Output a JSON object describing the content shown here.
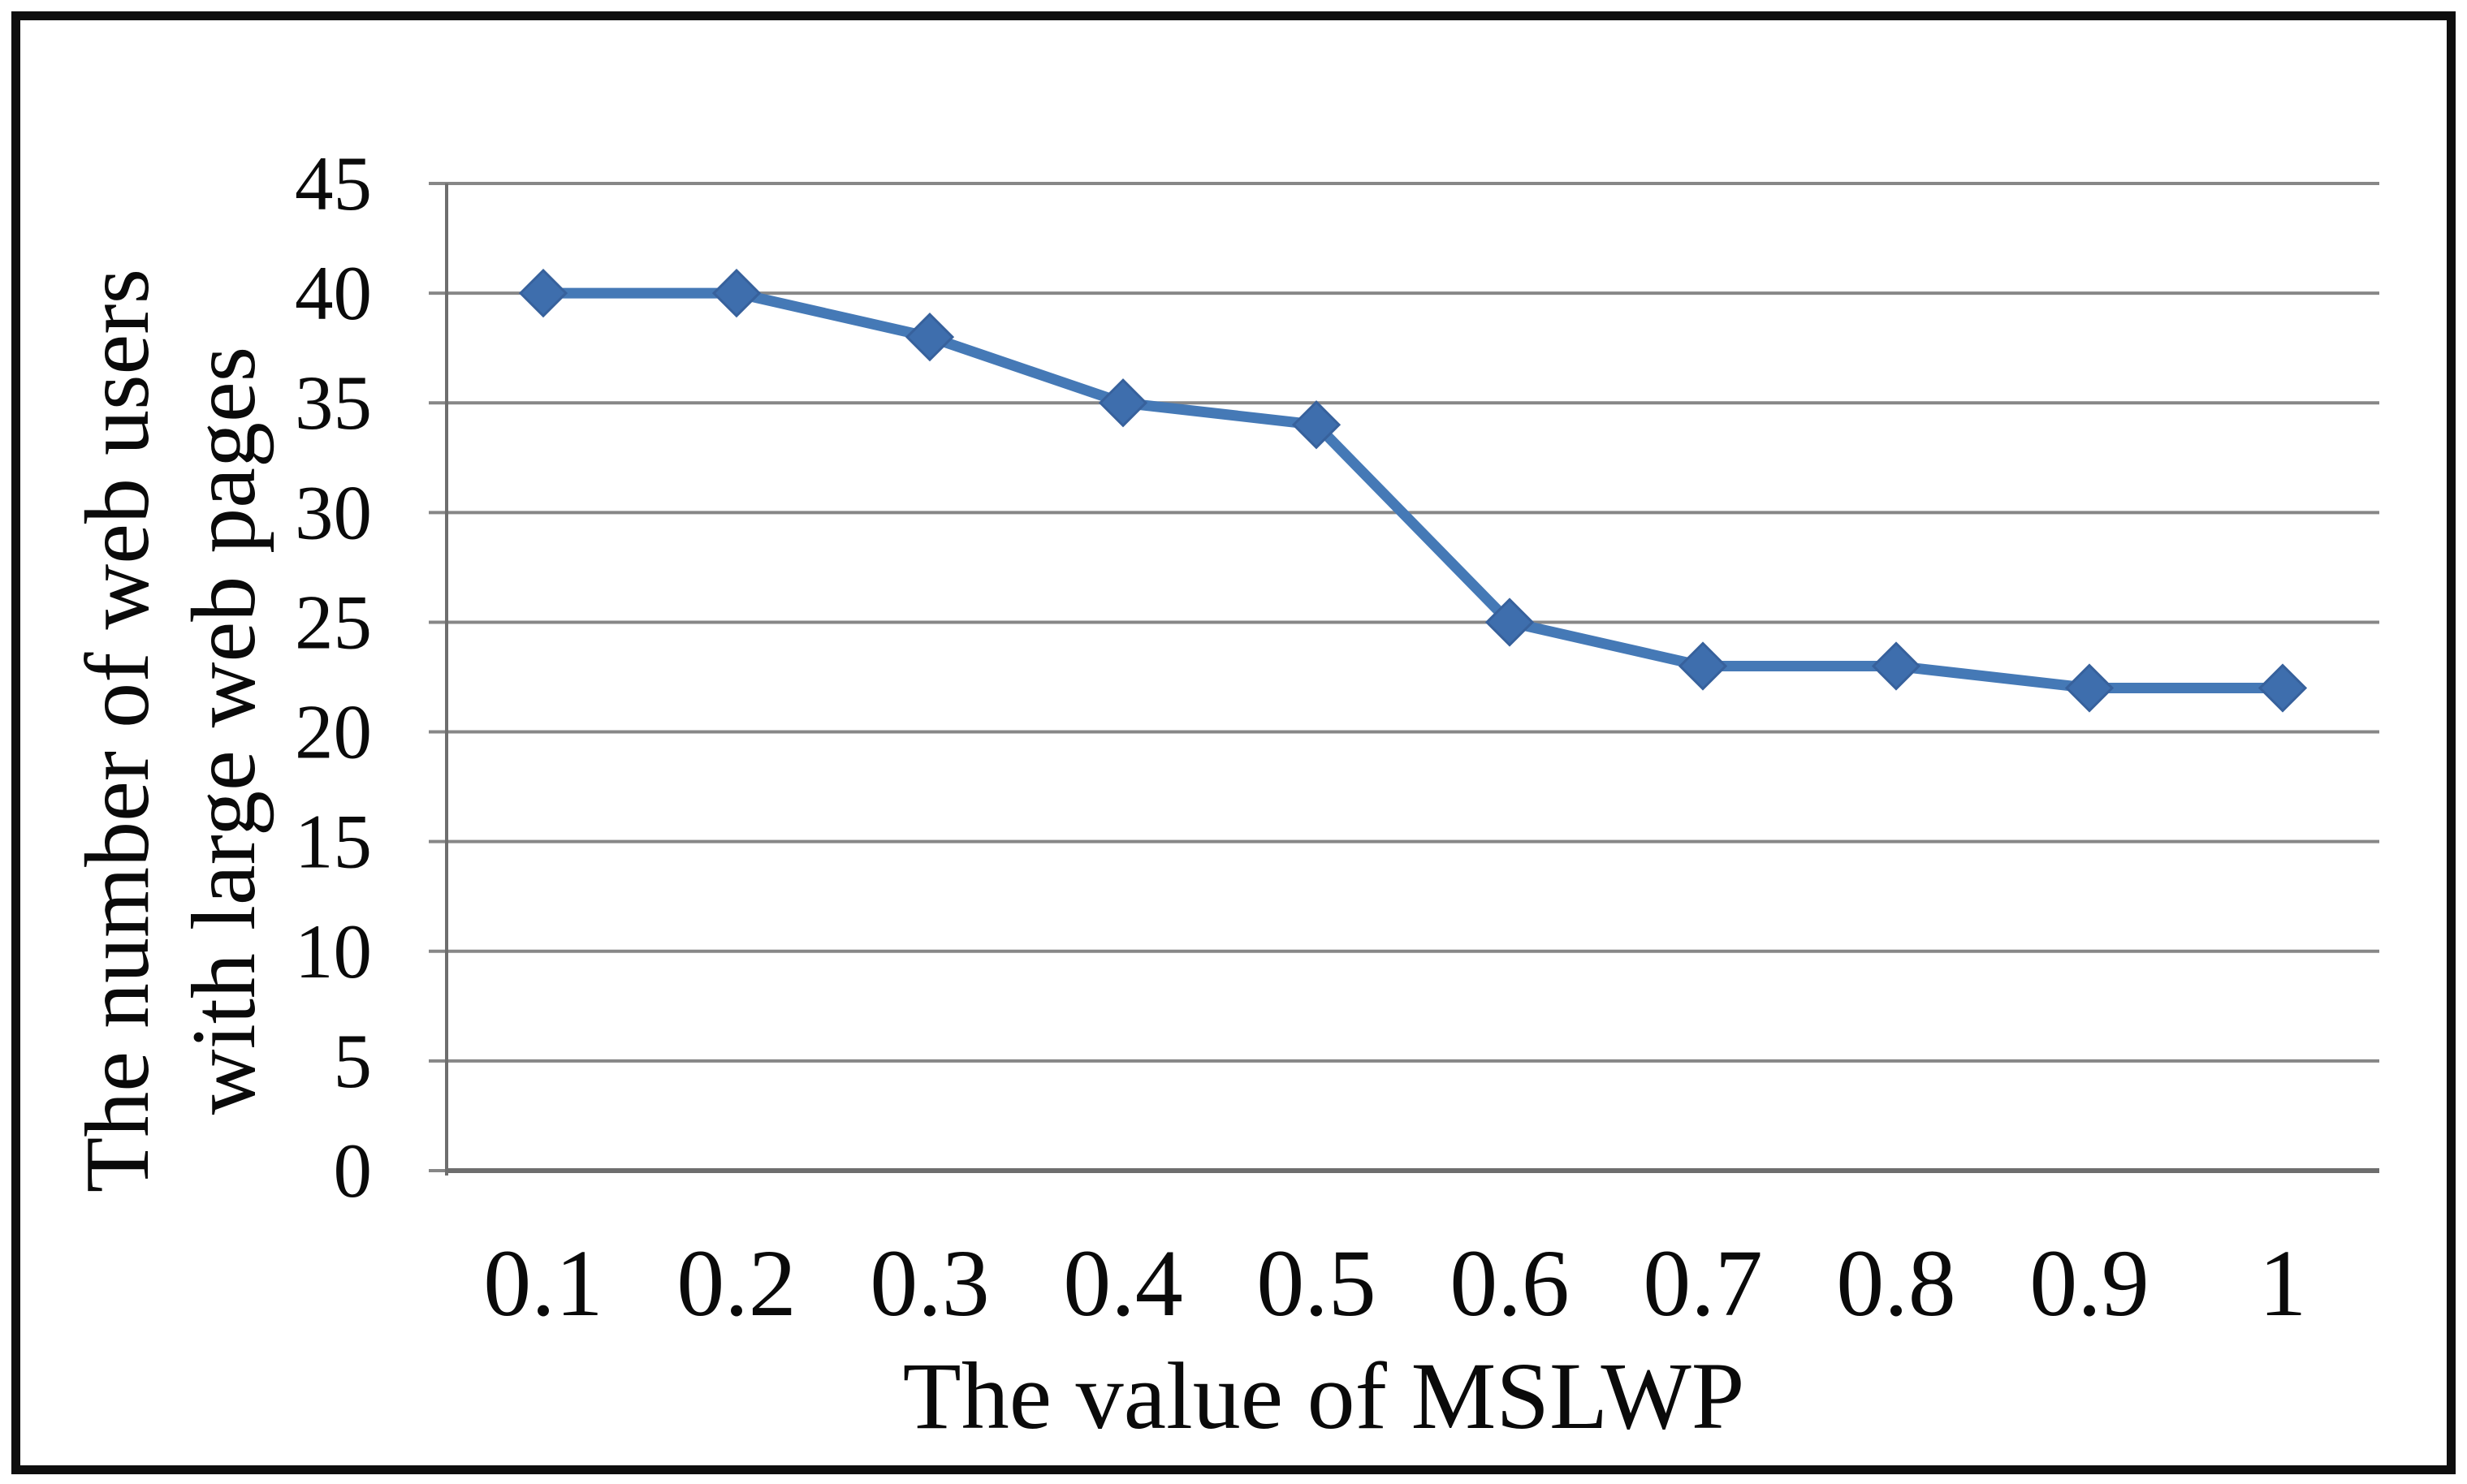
{
  "chart_data": {
    "type": "line",
    "title": "",
    "xlabel": "The value of MSLWP",
    "ylabel": "The number of web users with large web pages",
    "ylabel_lines": [
      "The number of web users",
      "with large web pages"
    ],
    "x": [
      0.1,
      0.2,
      0.3,
      0.4,
      0.5,
      0.6,
      0.7,
      0.8,
      0.9,
      1
    ],
    "x_tick_labels": [
      "0.1",
      "0.2",
      "0.3",
      "0.4",
      "0.5",
      "0.6",
      "0.7",
      "0.8",
      "0.9",
      "1"
    ],
    "series": [
      {
        "name": "web users with large web pages",
        "values": [
          40,
          40,
          38,
          35,
          34,
          25,
          23,
          23,
          22,
          22
        ],
        "marker": "diamond"
      }
    ],
    "ylim": [
      0,
      45
    ],
    "yticks": [
      0,
      5,
      10,
      15,
      20,
      25,
      30,
      35,
      40,
      45
    ],
    "y_tick_labels": [
      "0",
      "5",
      "10",
      "15",
      "20",
      "25",
      "30",
      "35",
      "40",
      "45"
    ],
    "grid": "horizontal-major",
    "legend": "none",
    "colors": {
      "series_line": "#4579b6",
      "marker_fill": "#3e6ead",
      "marker_edge": "#37619c",
      "gridline": "#878787",
      "axis": "#6e6e6e",
      "text": "#0a0a0a",
      "frame": "#0e0e0e",
      "background": "#ffffff"
    }
  }
}
